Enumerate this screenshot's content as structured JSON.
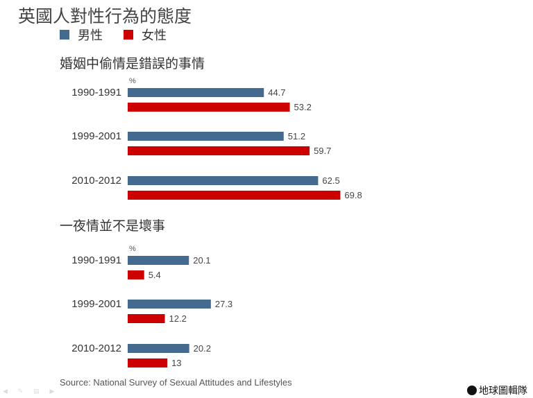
{
  "title": "英國人對性行為的態度",
  "legend": [
    {
      "label": "男性",
      "color": "#456a8f"
    },
    {
      "label": "女性",
      "color": "#cc0000"
    }
  ],
  "chart_data": [
    {
      "type": "bar",
      "orientation": "horizontal",
      "title": "婚姻中偷情是錯誤的事情",
      "unit_label": "%",
      "categories": [
        "1990-1991",
        "1999-2001",
        "2010-2012"
      ],
      "series": [
        {
          "name": "男性",
          "color": "#456a8f",
          "values": [
            44.7,
            51.2,
            62.5
          ],
          "labels": [
            "44.7",
            "51.2",
            "62.5"
          ]
        },
        {
          "name": "女性",
          "color": "#cc0000",
          "values": [
            53.2,
            59.7,
            69.8
          ],
          "labels": [
            "53.2",
            "59.7",
            "69.8"
          ]
        }
      ]
    },
    {
      "type": "bar",
      "orientation": "horizontal",
      "title": "一夜情並不是壞事",
      "unit_label": "%",
      "categories": [
        "1990-1991",
        "1999-2001",
        "2010-2012"
      ],
      "series": [
        {
          "name": "男性",
          "color": "#456a8f",
          "values": [
            20.1,
            27.3,
            20.2
          ],
          "labels": [
            "20.1",
            "27.3",
            "20.2"
          ]
        },
        {
          "name": "女性",
          "color": "#cc0000",
          "values": [
            5.4,
            12.2,
            13
          ],
          "labels": [
            "5.4",
            "12.2",
            "13"
          ]
        }
      ]
    }
  ],
  "source": "Source: National Survey of Sexual Attitudes and Lifestyles",
  "logo": "地球圖輯隊"
}
